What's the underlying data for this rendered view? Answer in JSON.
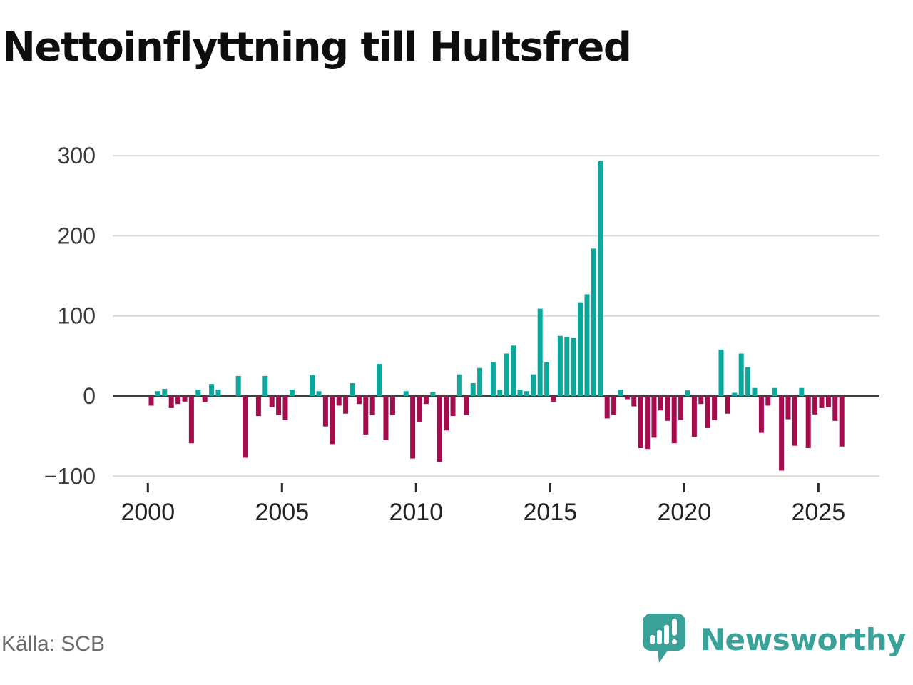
{
  "title": "Nettoinflyttning till Hultsfred",
  "source": "Källa: SCB",
  "brand": {
    "name": "Newsworthy",
    "logo_icon": "speech-bubble-bar-chart-icon",
    "color": "#3aa198"
  },
  "chart_data": {
    "type": "bar",
    "title": "Nettoinflyttning till Hultsfred",
    "frequency": "quarterly",
    "start_year": 2000,
    "xlabel": "",
    "ylabel": "",
    "ylim": [
      -130,
      330
    ],
    "grid": "horizontal",
    "y_ticks": [
      300,
      200,
      100,
      0,
      -100
    ],
    "y_tick_labels": [
      "300",
      "200",
      "100",
      "0",
      "−100"
    ],
    "x_tick_years": [
      2000,
      2005,
      2010,
      2015,
      2020,
      2025
    ],
    "x_tick_labels": [
      "2000",
      "2005",
      "2010",
      "2015",
      "2020",
      "2025"
    ],
    "positive_color": "#0ba79b",
    "negative_color": "#a50b4d",
    "values": [
      -12,
      6,
      9,
      -15,
      -10,
      -7,
      -59,
      8,
      -8,
      15,
      8,
      0,
      0,
      25,
      -77,
      0,
      -25,
      25,
      -14,
      -24,
      -30,
      8,
      0,
      0,
      26,
      6,
      -38,
      -60,
      -12,
      -22,
      16,
      -10,
      -48,
      -24,
      40,
      -55,
      -24,
      0,
      6,
      -78,
      -32,
      -10,
      5,
      -82,
      -43,
      -25,
      27,
      -24,
      16,
      35,
      0,
      42,
      8,
      53,
      63,
      8,
      6,
      27,
      109,
      42,
      -7,
      75,
      74,
      73,
      117,
      127,
      184,
      293,
      -28,
      -24,
      8,
      -4,
      -13,
      -65,
      -66,
      -52,
      -18,
      -31,
      -59,
      -30,
      7,
      -51,
      -10,
      -40,
      -30,
      58,
      -22,
      4,
      53,
      36,
      10,
      -46,
      -12,
      10,
      -93,
      -29,
      -62,
      10,
      -65,
      -23,
      -15,
      -14,
      -31,
      -63
    ]
  }
}
